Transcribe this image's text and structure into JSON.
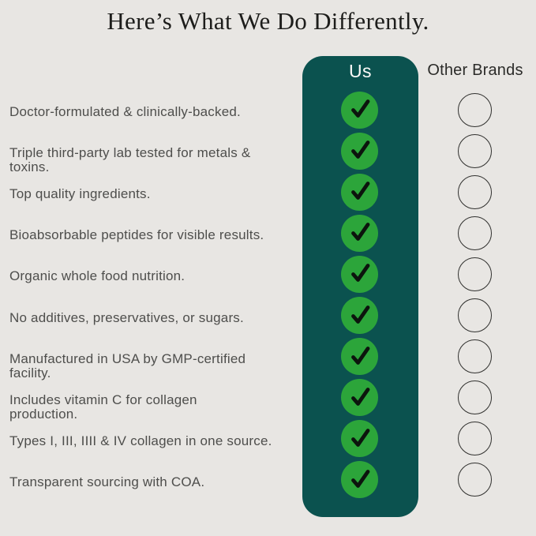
{
  "page": {
    "title": "Here’s What We Do Differently.",
    "background_color": "#e8e6e3"
  },
  "comparison": {
    "us_header": "Us",
    "other_header": "Other Brands",
    "colors": {
      "us_column": "#0b524f",
      "check_circle": "#2ca53a",
      "check_mark": "#0c140d",
      "empty_circle_outline": "#30302e"
    },
    "rows": [
      {
        "feature": "Doctor-formulated & clinically-backed.",
        "us": "check",
        "other_brands": "empty"
      },
      {
        "feature": "Triple third-party lab tested for metals &\ntoxins.",
        "us": "check",
        "other_brands": "empty"
      },
      {
        "feature": "Top quality ingredients.",
        "us": "check",
        "other_brands": "empty"
      },
      {
        "feature": "Bioabsorbable peptides for visible results.",
        "us": "check",
        "other_brands": "empty"
      },
      {
        "feature": "Organic whole food nutrition.",
        "us": "check",
        "other_brands": "empty"
      },
      {
        "feature": "No additives, preservatives, or sugars.",
        "us": "check",
        "other_brands": "empty"
      },
      {
        "feature": "Manufactured in USA by GMP-certified\nfacility.",
        "us": "check",
        "other_brands": "empty"
      },
      {
        "feature": "Includes vitamin C for collagen\nproduction.",
        "us": "check",
        "other_brands": "empty"
      },
      {
        "feature": "Types I, III, IIII & IV collagen in one source.",
        "us": "check",
        "other_brands": "empty"
      },
      {
        "feature": "Transparent sourcing with COA.",
        "us": "check",
        "other_brands": "empty"
      }
    ]
  },
  "chart_data": {
    "type": "table",
    "title": "Here’s What We Do Differently.",
    "columns": [
      "Us",
      "Other Brands"
    ],
    "categories": [
      "Doctor-formulated & clinically-backed.",
      "Triple third-party lab tested for metals & toxins.",
      "Top quality ingredients.",
      "Bioabsorbable peptides for visible results.",
      "Organic whole food nutrition.",
      "No additives, preservatives, or sugars.",
      "Manufactured in USA by GMP-certified facility.",
      "Includes vitamin C for collagen production.",
      "Types I, III, IIII & IV collagen in one source.",
      "Transparent sourcing with COA."
    ],
    "series": [
      {
        "name": "Us",
        "values": [
          true,
          true,
          true,
          true,
          true,
          true,
          true,
          true,
          true,
          true
        ]
      },
      {
        "name": "Other Brands",
        "values": [
          false,
          false,
          false,
          false,
          false,
          false,
          false,
          false,
          false,
          false
        ]
      }
    ],
    "legend_position": "top",
    "grid": false
  }
}
